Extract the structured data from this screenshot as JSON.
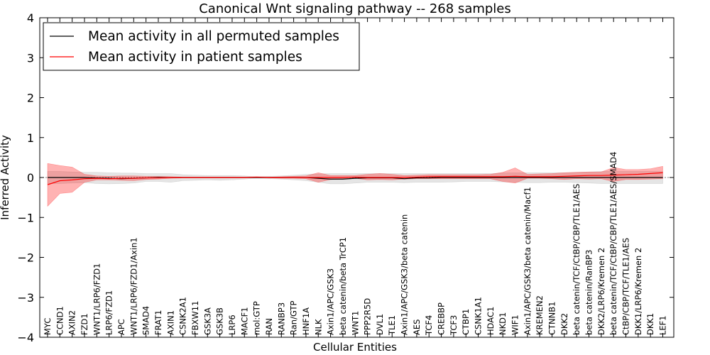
{
  "chart_data": {
    "type": "line",
    "title": "Canonical Wnt signaling pathway -- 268 samples",
    "xlabel": "Cellular Entities",
    "ylabel": "Inferred Activity",
    "ylim": [
      -4,
      4
    ],
    "yticks": [
      -4,
      -3,
      -2,
      -1,
      0,
      1,
      2,
      3,
      4
    ],
    "grid": false,
    "legend_position": "top-left",
    "categories": [
      "MYC",
      "CCND1",
      "AXIN2",
      "FZD1",
      "WNT1/LRP6/FZD1",
      "LRP6/FZD1",
      "APC",
      "WNT1/LRP6/FZD1/Axin1",
      "SMAD4",
      "FRAT1",
      "AXIN1",
      "CSNK2A1",
      "FBXW11",
      "GSK3A",
      "GSK3B",
      "LRP6",
      "MACF1",
      "mol:GTP",
      "RAN",
      "RANBP3",
      "Ran/GTP",
      "HNF1A",
      "NLK",
      "Axin1/APC/GSK3",
      "beta catenin/beta TrCP1",
      "WNT1",
      "PPP2R5D",
      "DVL1",
      "TLE1",
      "Axin1/APC/GSK3/beta catenin",
      "AES",
      "TCF4",
      "CREBBP",
      "TCF3",
      "CTBP1",
      "CSNK1A1",
      "HDAC1",
      "NKD1",
      "WIF1",
      "Axin1/APC/GSK3/beta catenin/Macf1",
      "KREMEN2",
      "CTNNB1",
      "DKK2",
      "beta catenin/TCF/CtBP/CBP/TLE1/AES",
      "beta catenin/RanBP3",
      "DKK2/LRP6/Kremen 2",
      "beta catenin/TCF/CtBP/CBP/TLE1/AES/SMAD4",
      "CtBP/CBP/TCF/TLE1/AES",
      "DKK1/LRP6/Kremen 2",
      "DKK1",
      "LEF1"
    ],
    "series": [
      {
        "name": "Mean activity in all permuted samples",
        "color": "#000000",
        "values": [
          0,
          0,
          0,
          0,
          -0.01,
          -0.02,
          -0.03,
          -0.02,
          -0.01,
          0,
          0,
          0,
          0,
          0,
          0,
          0,
          0,
          0,
          0,
          0,
          0,
          0,
          -0.02,
          -0.04,
          -0.04,
          -0.02,
          -0.01,
          -0.01,
          -0.01,
          -0.03,
          -0.01,
          -0.01,
          0,
          0,
          0,
          0,
          0,
          0,
          0,
          0,
          0,
          0,
          0,
          0,
          0,
          0,
          0,
          0,
          0,
          0,
          0
        ],
        "band_lower": [
          -0.15,
          -0.15,
          -0.14,
          -0.13,
          -0.15,
          -0.16,
          -0.15,
          -0.14,
          -0.1,
          -0.1,
          -0.12,
          -0.08,
          -0.07,
          -0.06,
          -0.07,
          -0.06,
          -0.04,
          -0.02,
          -0.03,
          -0.04,
          -0.06,
          -0.08,
          -0.12,
          -0.16,
          -0.16,
          -0.14,
          -0.12,
          -0.12,
          -0.12,
          -0.13,
          -0.12,
          -0.12,
          -0.12,
          -0.11,
          -0.1,
          -0.1,
          -0.1,
          -0.11,
          -0.12,
          -0.13,
          -0.13,
          -0.12,
          -0.12,
          -0.13,
          -0.14,
          -0.15,
          -0.15,
          -0.15,
          -0.15,
          -0.15,
          -0.15
        ],
        "band_upper": [
          0.15,
          0.15,
          0.14,
          0.13,
          0.13,
          0.12,
          0.11,
          0.11,
          0.1,
          0.1,
          0.1,
          0.07,
          0.06,
          0.05,
          0.05,
          0.05,
          0.04,
          0.02,
          0.03,
          0.04,
          0.06,
          0.08,
          0.09,
          0.1,
          0.1,
          0.1,
          0.1,
          0.1,
          0.1,
          0.1,
          0.1,
          0.1,
          0.1,
          0.1,
          0.1,
          0.1,
          0.1,
          0.11,
          0.12,
          0.12,
          0.12,
          0.12,
          0.12,
          0.13,
          0.14,
          0.15,
          0.15,
          0.15,
          0.15,
          0.15,
          0.15
        ]
      },
      {
        "name": "Mean activity in patient samples",
        "color": "#ff0000",
        "values": [
          -0.18,
          -0.08,
          -0.06,
          -0.03,
          -0.02,
          -0.03,
          -0.02,
          -0.02,
          -0.01,
          -0.01,
          0,
          0,
          0,
          0,
          0,
          0,
          0,
          0.01,
          0,
          0,
          0,
          0,
          0,
          0,
          0,
          0.01,
          0,
          0,
          0,
          0,
          0.01,
          0.02,
          0.02,
          0.02,
          0.02,
          0.02,
          0.02,
          0.02,
          0.03,
          0.02,
          0.02,
          0.02,
          0.03,
          0.04,
          0.05,
          0.05,
          0.06,
          0.07,
          0.08,
          0.1,
          0.12
        ],
        "band_lower": [
          -0.72,
          -0.4,
          -0.37,
          -0.12,
          -0.06,
          -0.06,
          -0.07,
          -0.08,
          -0.05,
          -0.04,
          -0.02,
          -0.01,
          -0.01,
          -0.01,
          -0.01,
          -0.01,
          -0.01,
          0,
          -0.01,
          -0.02,
          -0.02,
          -0.03,
          -0.12,
          -0.05,
          -0.04,
          -0.02,
          -0.06,
          -0.05,
          -0.06,
          -0.04,
          -0.03,
          -0.03,
          -0.03,
          -0.03,
          -0.03,
          -0.03,
          -0.03,
          -0.1,
          -0.14,
          -0.02,
          -0.02,
          -0.03,
          -0.05,
          -0.03,
          -0.04,
          -0.03,
          -0.1,
          -0.05,
          -0.05,
          -0.04,
          -0.03
        ],
        "band_upper": [
          0.35,
          0.3,
          0.26,
          0.08,
          0.04,
          0.03,
          0.04,
          0.04,
          0.03,
          0.03,
          0.02,
          0.01,
          0.01,
          0.01,
          0.01,
          0.01,
          0.01,
          0.02,
          0.01,
          0.02,
          0.03,
          0.04,
          0.12,
          0.05,
          0.05,
          0.05,
          0.08,
          0.1,
          0.08,
          0.05,
          0.06,
          0.07,
          0.07,
          0.07,
          0.07,
          0.07,
          0.08,
          0.13,
          0.24,
          0.08,
          0.09,
          0.1,
          0.12,
          0.13,
          0.14,
          0.14,
          0.25,
          0.2,
          0.2,
          0.22,
          0.28
        ]
      }
    ]
  }
}
